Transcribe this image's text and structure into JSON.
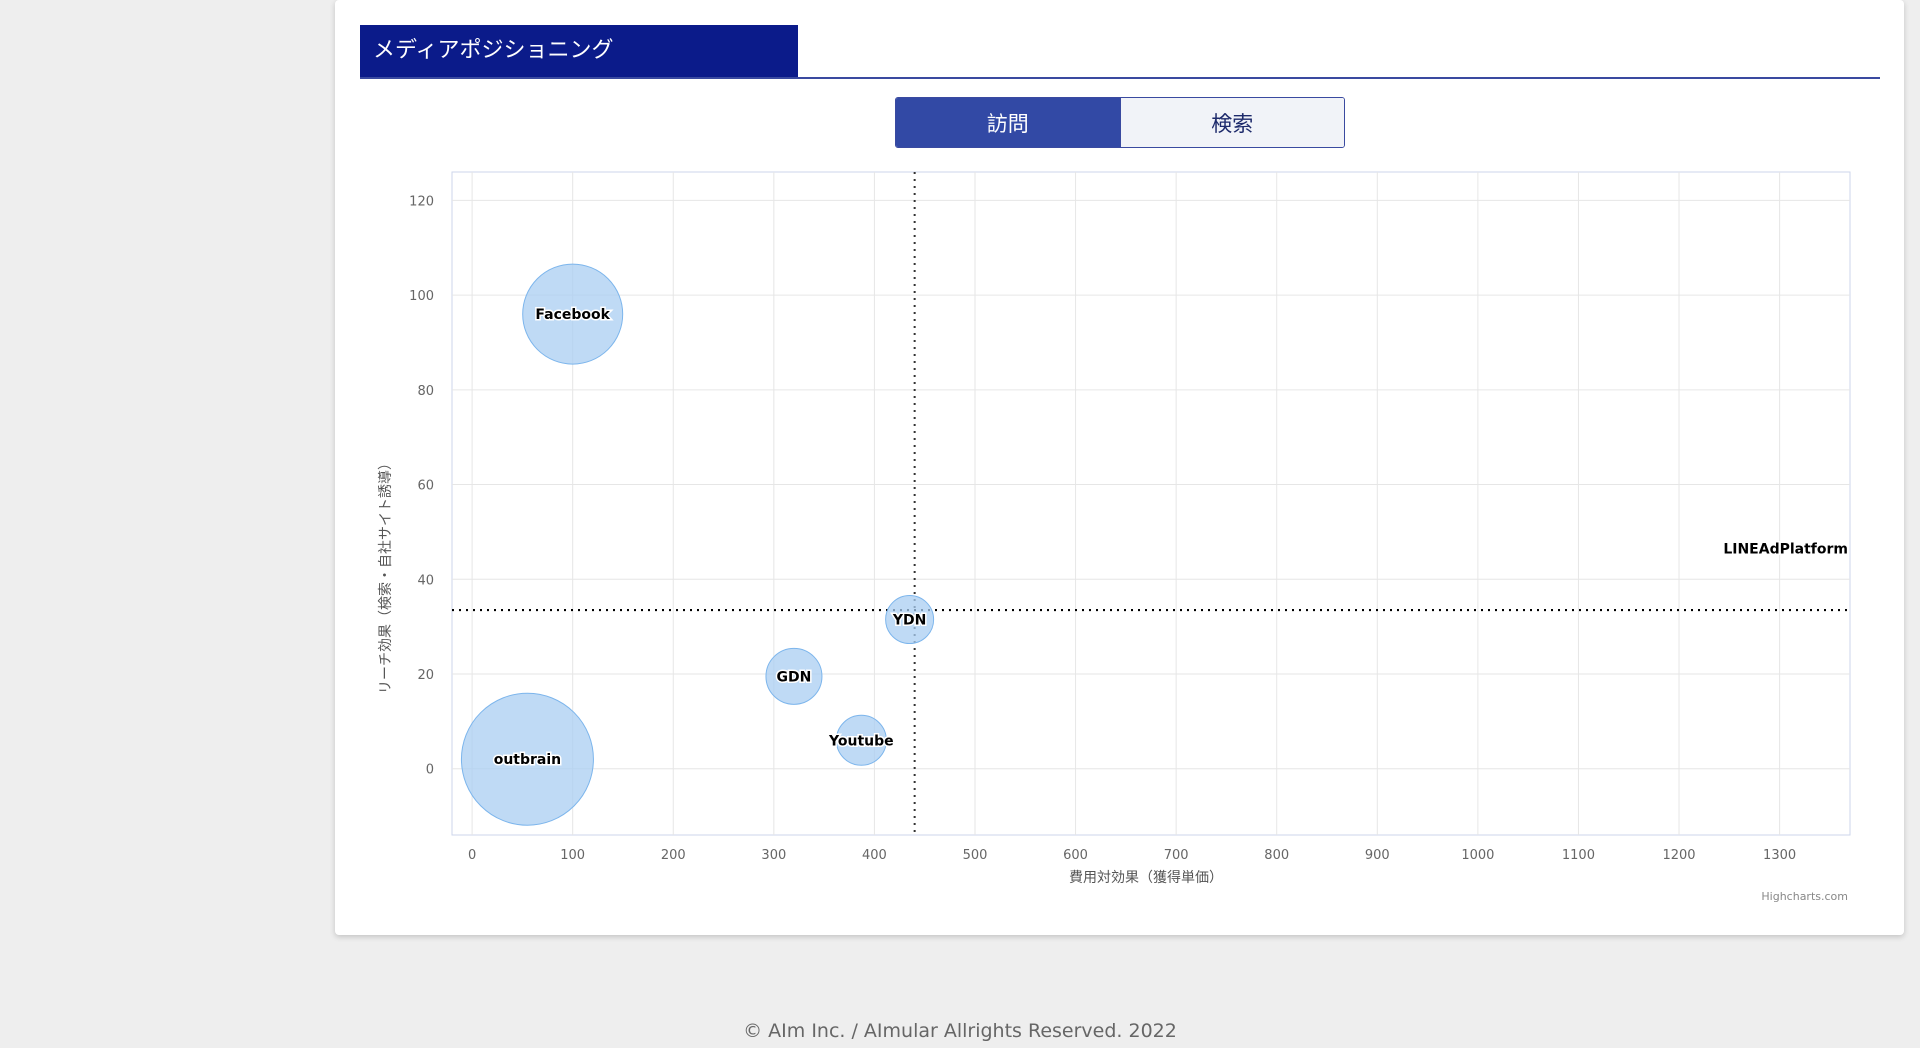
{
  "panel": {
    "title": "メディアポジショニング"
  },
  "toggle": {
    "visit_label": "訪問",
    "search_label": "検索"
  },
  "colors": {
    "title_bg": "#0b1b8a",
    "accent": "#3249a5",
    "bubble_fill": "#a9cdf2",
    "bubble_stroke": "#7cb5ec"
  },
  "chart_data": {
    "type": "bubble",
    "xlabel": "費用対効果（獲得単価）",
    "ylabel": "リーチ効果（検索・自社サイト誘導）",
    "xlim": [
      -20,
      1370
    ],
    "ylim": [
      -14,
      126
    ],
    "x_ticks": [
      0,
      100,
      200,
      300,
      400,
      500,
      600,
      700,
      800,
      900,
      1000,
      1100,
      1200,
      1300
    ],
    "y_ticks": [
      0,
      20,
      40,
      60,
      80,
      100,
      120
    ],
    "grid": true,
    "reference_lines": {
      "x": 440,
      "y": 33.5
    },
    "credit": "Highcharts.com",
    "points": [
      {
        "name": "Facebook",
        "x": 100,
        "y": 96,
        "z": 50
      },
      {
        "name": "outbrain",
        "x": 55,
        "y": 2,
        "z": 66
      },
      {
        "name": "GDN",
        "x": 320,
        "y": 19.5,
        "z": 28
      },
      {
        "name": "Youtube",
        "x": 387,
        "y": 6,
        "z": 25
      },
      {
        "name": "YDN",
        "x": 435,
        "y": 31.5,
        "z": 24
      },
      {
        "name": "LINEAdPlatform",
        "x": 1370,
        "y": 46.5,
        "z": 0
      }
    ]
  },
  "footer": {
    "copyright": "© AIm Inc. / AImular Allrights Reserved. 2022"
  }
}
